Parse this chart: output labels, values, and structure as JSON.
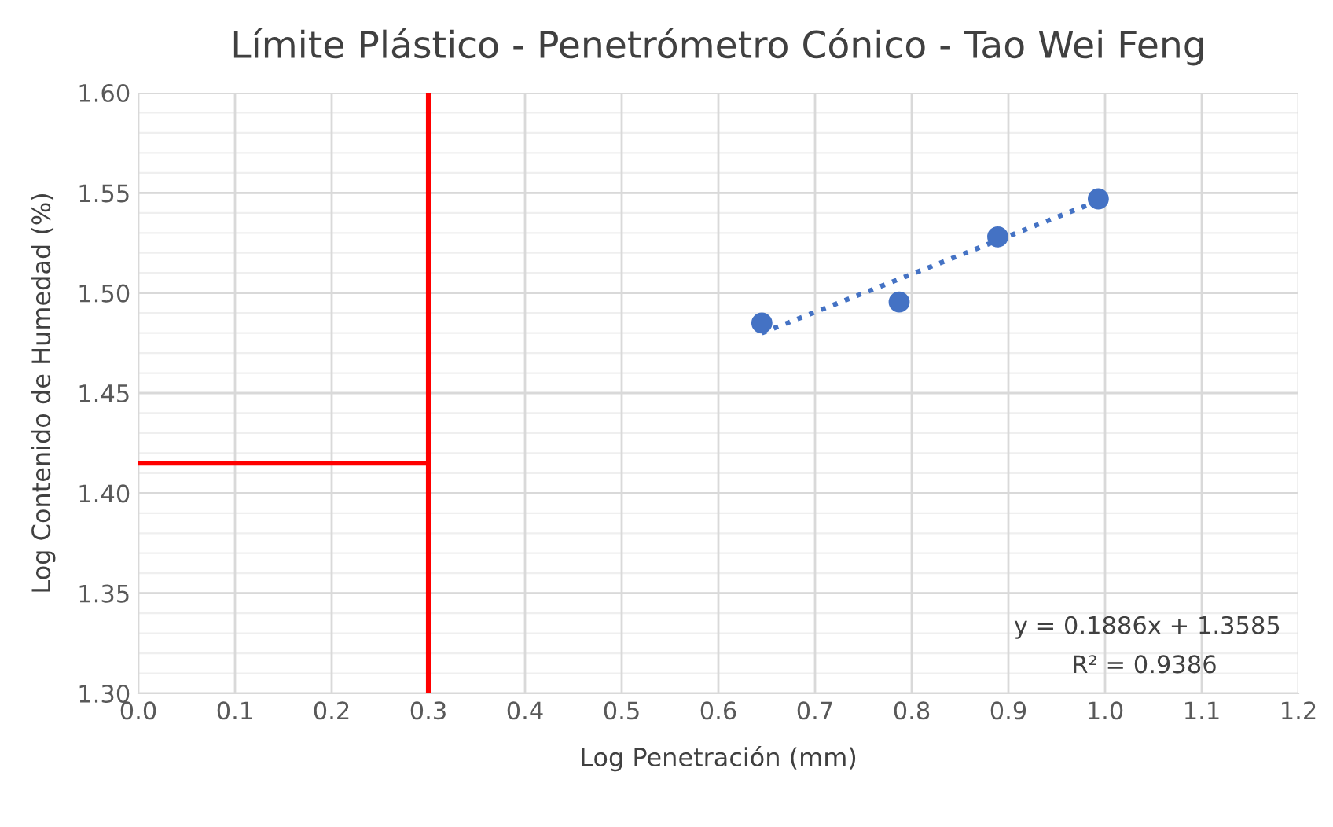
{
  "chart_data": {
    "type": "scatter",
    "title": "Límite Plástico - Penetrómetro Cónico - Tao Wei Feng",
    "xlabel": "Log Penetración (mm)",
    "ylabel": "Log Contenido de Humedad (%)",
    "xlim": [
      0.0,
      1.2
    ],
    "xticks": [
      {
        "value": 0.0,
        "label": "0.0"
      },
      {
        "value": 0.1,
        "label": "0.1"
      },
      {
        "value": 0.2,
        "label": "0.2"
      },
      {
        "value": 0.3,
        "label": "0.3"
      },
      {
        "value": 0.4,
        "label": "0.4"
      },
      {
        "value": 0.5,
        "label": "0.5"
      },
      {
        "value": 0.6,
        "label": "0.6"
      },
      {
        "value": 0.7,
        "label": "0.7"
      },
      {
        "value": 0.8,
        "label": "0.8"
      },
      {
        "value": 0.9,
        "label": "0.9"
      },
      {
        "value": 1.0,
        "label": "1.0"
      },
      {
        "value": 1.1,
        "label": "1.1"
      },
      {
        "value": 1.2,
        "label": "1.2"
      }
    ],
    "ylim": [
      1.3,
      1.6
    ],
    "yticks": [
      {
        "value": 1.3,
        "label": "1.30"
      },
      {
        "value": 1.35,
        "label": "1.35"
      },
      {
        "value": 1.4,
        "label": "1.40"
      },
      {
        "value": 1.45,
        "label": "1.45"
      },
      {
        "value": 1.5,
        "label": "1.50"
      },
      {
        "value": 1.55,
        "label": "1.55"
      },
      {
        "value": 1.6,
        "label": "1.60"
      }
    ],
    "grid": true,
    "marker": "circle",
    "series": [
      {
        "color": "#4472c4",
        "x": [
          0.645,
          0.787,
          0.889,
          0.993
        ],
        "values": [
          1.485,
          1.4955,
          1.528,
          1.547
        ]
      },
      {
        "type": "line",
        "color": "#4472c4",
        "line_style": "dotted",
        "marker": "none",
        "x": [
          0.645,
          0.993
        ],
        "values": [
          1.48,
          1.546
        ]
      },
      {
        "type": "line",
        "color": "#ff0000",
        "line_style": "solid",
        "marker": "none",
        "x": [
          0.3,
          0.3
        ],
        "values": [
          1.3,
          1.6
        ]
      },
      {
        "type": "line",
        "color": "#ff0000",
        "line_style": "solid",
        "marker": "none",
        "x": [
          0.0,
          0.3
        ],
        "values": [
          1.415,
          1.415
        ]
      }
    ],
    "annotations": [
      "y = 0.1886x + 1.3585",
      "R² = 0.9386"
    ]
  }
}
